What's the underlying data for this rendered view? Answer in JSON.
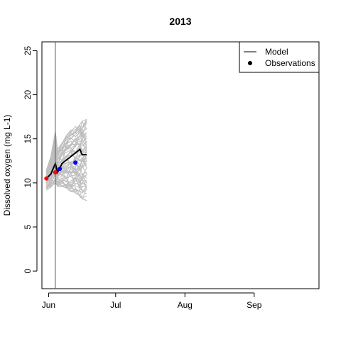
{
  "chart_data": {
    "type": "line",
    "title": "2013",
    "xlabel": "",
    "ylabel": "Dissolved oxygen (mg L-1)",
    "x_ticks": [
      "Jun",
      "Jul",
      "Aug",
      "Sep"
    ],
    "x_tick_dates": [
      "2013-06-01",
      "2013-07-01",
      "2013-08-01",
      "2013-09-01"
    ],
    "xlim": [
      "2013-05-29",
      "2013-09-30"
    ],
    "ylim": [
      -2,
      26
    ],
    "y_ticks": [
      0,
      5,
      10,
      15,
      20,
      25
    ],
    "forecast_start": "2013-06-04",
    "grid": false,
    "legend_position": "top-right",
    "legend": [
      {
        "label": "Model",
        "symbol": "line"
      },
      {
        "label": "Observations",
        "symbol": "point"
      }
    ],
    "colors": {
      "model": "#000000",
      "ensemble": "#bebebe",
      "obs_past": "#ff0000",
      "obs_future": "#0000ff"
    },
    "model_series": {
      "name": "Model",
      "x": [
        "2013-05-31",
        "2013-06-02",
        "2013-06-04",
        "2013-06-05",
        "2013-06-07",
        "2013-06-09",
        "2013-06-11",
        "2013-06-13",
        "2013-06-15",
        "2013-06-16",
        "2013-06-18"
      ],
      "y": [
        10.5,
        11.0,
        12.2,
        11.2,
        12.2,
        12.6,
        13.0,
        13.4,
        13.8,
        13.2,
        13.2
      ]
    },
    "ensemble_envelope": {
      "x": [
        "2013-05-31",
        "2013-06-02",
        "2013-06-04",
        "2013-06-05",
        "2013-06-07",
        "2013-06-09",
        "2013-06-11",
        "2013-06-13",
        "2013-06-15",
        "2013-06-16",
        "2013-06-18"
      ],
      "lower": [
        9.2,
        9.5,
        10.0,
        9.6,
        9.6,
        9.4,
        9.0,
        8.7,
        8.4,
        8.2,
        8.0
      ],
      "upper": [
        11.5,
        13.0,
        15.8,
        13.8,
        14.5,
        15.4,
        16.0,
        16.4,
        16.6,
        17.0,
        17.2
      ]
    },
    "observations": [
      {
        "x": "2013-05-31",
        "y": 10.5,
        "color": "#ff0000"
      },
      {
        "x": "2013-06-04",
        "y": 11.2,
        "color": "#ff0000"
      },
      {
        "x": "2013-06-06",
        "y": 11.6,
        "color": "#0000ff"
      },
      {
        "x": "2013-06-13",
        "y": 12.3,
        "color": "#0000ff"
      }
    ]
  }
}
